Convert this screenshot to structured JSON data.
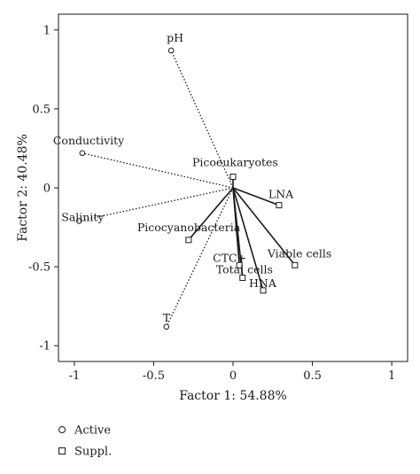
{
  "chart_data": {
    "type": "scatter",
    "xlabel": "Factor 1: 54.88%",
    "ylabel": "Factor 2: 40.48%",
    "xlim": [
      -1.1,
      1.1
    ],
    "ylim": [
      -1.1,
      1.1
    ],
    "xticks": [
      "-1",
      "-0.5",
      "0",
      "0.5",
      "1"
    ],
    "yticks": [
      "1",
      "0.5",
      "0",
      "-0.5",
      "-1"
    ],
    "xtick_values": [
      -1,
      -0.5,
      0,
      0.5,
      1
    ],
    "ytick_values": [
      1,
      0.5,
      0,
      -0.5,
      -1
    ],
    "grid": false,
    "legend_position": "bottom-left",
    "series": [
      {
        "name": "Active",
        "marker": "circle",
        "line_style": "dotted",
        "points": [
          {
            "label": "pH",
            "x": -0.39,
            "y": 0.87
          },
          {
            "label": "Conductivity",
            "x": -0.95,
            "y": 0.22
          },
          {
            "label": "Salinity",
            "x": -0.97,
            "y": -0.21
          },
          {
            "label": "T",
            "x": -0.42,
            "y": -0.88
          }
        ]
      },
      {
        "name": "Suppl.",
        "marker": "square",
        "line_style": "solid",
        "points": [
          {
            "label": "Picoeukaryotes",
            "x": 0.0,
            "y": 0.07
          },
          {
            "label": "LNA",
            "x": 0.29,
            "y": -0.11
          },
          {
            "label": "Picocyanobacteria",
            "x": -0.28,
            "y": -0.33
          },
          {
            "label": "Viable cells",
            "x": 0.39,
            "y": -0.49
          },
          {
            "label": "CTC+",
            "x": 0.04,
            "y": -0.49
          },
          {
            "label": "Total cells",
            "x": 0.06,
            "y": -0.57
          },
          {
            "label": "HNA",
            "x": 0.19,
            "y": -0.65
          }
        ]
      }
    ]
  }
}
